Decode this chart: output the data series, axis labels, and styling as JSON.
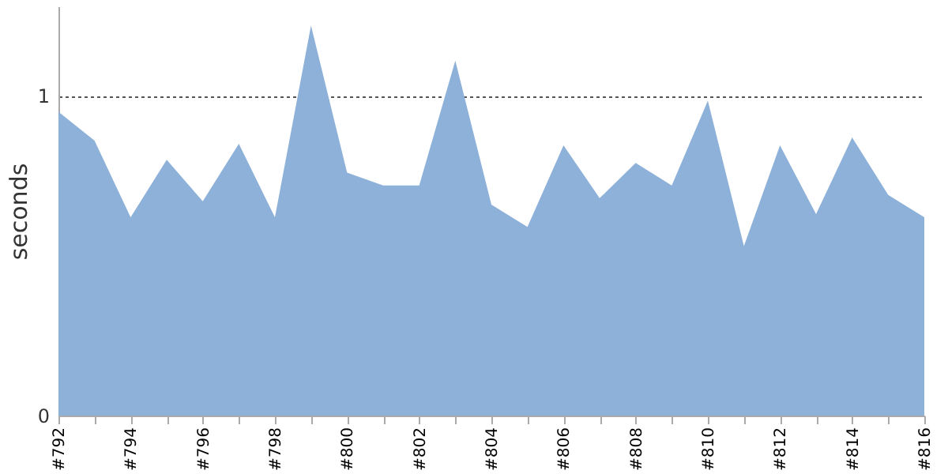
{
  "chart_data": {
    "type": "area",
    "ylabel": "seconds",
    "categories": [
      "#792",
      null,
      "#794",
      null,
      "#796",
      null,
      "#798",
      null,
      "#800",
      null,
      "#802",
      null,
      "#804",
      null,
      "#806",
      null,
      "#808",
      null,
      "#810",
      null,
      "#812",
      null,
      "#814",
      null,
      "#816"
    ],
    "series": [
      {
        "color": "#8eb1d9",
        "values": [
          0.95,
          0.86,
          0.62,
          0.8,
          0.67,
          0.85,
          0.62,
          1.22,
          0.76,
          0.72,
          0.72,
          1.11,
          0.66,
          0.59,
          0.845,
          0.68,
          0.79,
          0.72,
          0.985,
          0.53,
          0.845,
          0.63,
          0.87,
          0.69,
          0.62
        ]
      }
    ],
    "ylim": [
      0,
      1.28
    ],
    "yticks": [
      0,
      1
    ],
    "grid": "y"
  }
}
